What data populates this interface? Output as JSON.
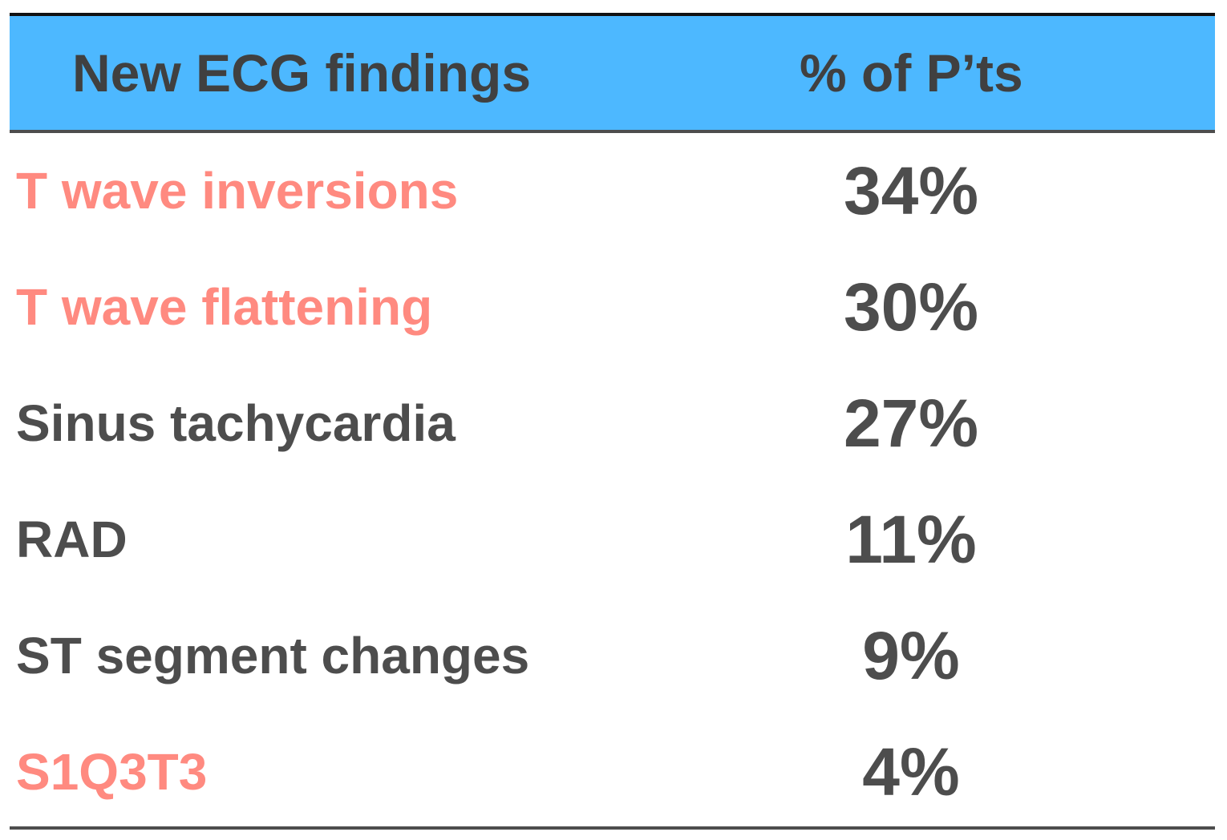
{
  "chart_data": {
    "type": "table",
    "columns": [
      "New ECG findings",
      "% of P’ts"
    ],
    "rows": [
      {
        "finding": "T wave inversions",
        "percent": "34%",
        "value": 34,
        "color": "#ff8a80"
      },
      {
        "finding": "T wave flattening",
        "percent": "30%",
        "value": 30,
        "color": "#ff8a80"
      },
      {
        "finding": "Sinus tachycardia",
        "percent": "27%",
        "value": 27,
        "color": "#4d4d4d"
      },
      {
        "finding": "RAD",
        "percent": "11%",
        "value": 11,
        "color": "#4d4d4d"
      },
      {
        "finding": "ST segment changes",
        "percent": "9%",
        "value": 9,
        "color": "#4d4d4d"
      },
      {
        "finding": "S1Q3T3",
        "percent": "4%",
        "value": 4,
        "color": "#ff8a80"
      }
    ],
    "colors": {
      "header_background": "#4db8ff",
      "header_text": "#404040",
      "highlight_text": "#ff8a80",
      "default_text": "#4d4d4d",
      "rule": "#4d4d4d"
    }
  }
}
